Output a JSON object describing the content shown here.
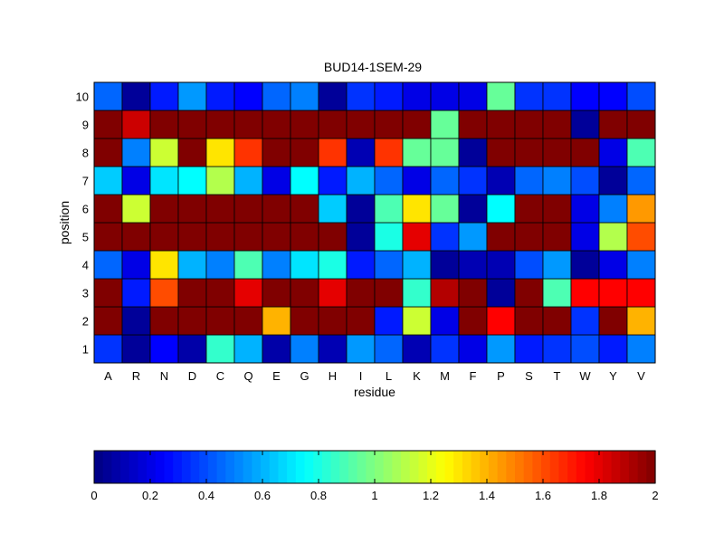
{
  "chart_data": {
    "type": "heatmap",
    "title": "BUD14-1SEM-29",
    "xlabel": "residue",
    "ylabel": "position",
    "x_categories": [
      "A",
      "R",
      "N",
      "D",
      "C",
      "Q",
      "E",
      "G",
      "H",
      "I",
      "L",
      "K",
      "M",
      "F",
      "P",
      "S",
      "T",
      "W",
      "Y",
      "V"
    ],
    "y_categories": [
      "1",
      "2",
      "3",
      "4",
      "5",
      "6",
      "7",
      "8",
      "9",
      "10"
    ],
    "values": [
      [
        0.35,
        0.05,
        0.25,
        0.08,
        0.85,
        0.6,
        0.08,
        0.5,
        0.1,
        0.55,
        0.45,
        0.1,
        0.35,
        0.2,
        0.55,
        0.3,
        0.35,
        0.4,
        0.3,
        0.5
      ],
      [
        2.0,
        0.05,
        2.0,
        2.0,
        2.0,
        2.0,
        1.4,
        2.0,
        2.0,
        2.0,
        0.3,
        1.15,
        0.2,
        2.0,
        1.75,
        2.0,
        2.0,
        0.35,
        2.0,
        1.4
      ],
      [
        2.0,
        0.3,
        1.6,
        2.0,
        2.0,
        1.8,
        2.0,
        2.0,
        1.8,
        2.0,
        2.0,
        0.85,
        1.9,
        2.0,
        0.05,
        2.0,
        0.9,
        1.75,
        1.75,
        1.75
      ],
      [
        0.45,
        0.2,
        1.3,
        0.6,
        0.5,
        0.9,
        0.5,
        0.7,
        0.8,
        0.3,
        0.45,
        0.6,
        0.05,
        0.1,
        0.1,
        0.4,
        0.55,
        0.05,
        0.2,
        0.5
      ],
      [
        2.0,
        2.0,
        2.0,
        2.0,
        2.0,
        2.0,
        2.0,
        2.0,
        2.0,
        0.05,
        0.8,
        1.8,
        0.35,
        0.55,
        2.0,
        2.0,
        2.0,
        0.2,
        1.1,
        1.6
      ],
      [
        2.0,
        1.15,
        2.0,
        2.0,
        2.0,
        2.0,
        2.0,
        2.0,
        0.65,
        0.05,
        0.9,
        1.3,
        0.95,
        0.05,
        0.75,
        2.0,
        2.0,
        0.2,
        0.5,
        1.45
      ],
      [
        0.65,
        0.2,
        0.7,
        0.75,
        1.1,
        0.6,
        0.2,
        0.75,
        0.3,
        0.6,
        0.45,
        0.2,
        0.45,
        0.35,
        0.1,
        0.45,
        0.5,
        0.4,
        0.05,
        0.45
      ],
      [
        2.0,
        0.5,
        1.15,
        2.0,
        1.3,
        1.65,
        2.0,
        2.0,
        1.65,
        0.1,
        1.65,
        0.95,
        0.95,
        0.05,
        2.0,
        2.0,
        2.0,
        2.0,
        0.2,
        0.9
      ],
      [
        2.0,
        1.85,
        2.0,
        2.0,
        2.0,
        2.0,
        2.0,
        2.0,
        2.0,
        2.0,
        2.0,
        2.0,
        0.95,
        2.0,
        2.0,
        2.0,
        2.0,
        0.05,
        2.0,
        2.0
      ],
      [
        0.45,
        0.05,
        0.3,
        0.55,
        0.3,
        0.25,
        0.45,
        0.5,
        0.05,
        0.35,
        0.3,
        0.2,
        0.2,
        0.2,
        0.95,
        0.35,
        0.35,
        0.25,
        0.25,
        0.4
      ]
    ],
    "zlim": [
      0,
      2
    ],
    "colormap": "jet",
    "colorbar": {
      "orientation": "horizontal",
      "placement": "bottom",
      "ticks": [
        "0",
        "0.2",
        "0.4",
        "0.6",
        "0.8",
        "1",
        "1.2",
        "1.4",
        "1.6",
        "1.8",
        "2"
      ]
    },
    "grid": true,
    "colors": {
      "background": "#ffffff",
      "cell_border": "#000000"
    }
  }
}
